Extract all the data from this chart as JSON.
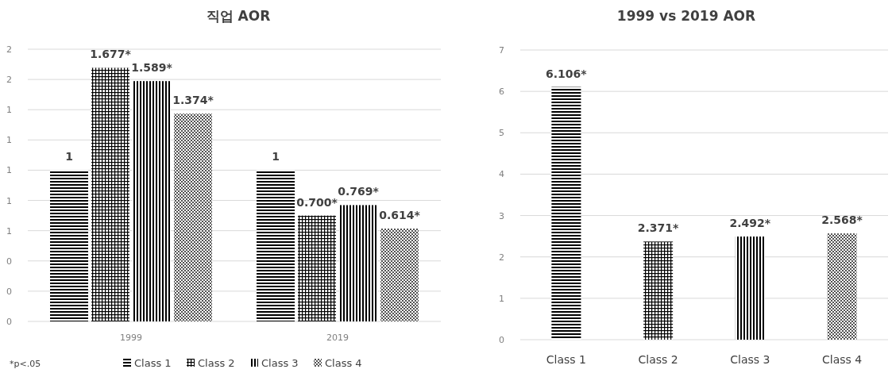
{
  "chart_data": [
    {
      "type": "bar",
      "title": "직업 AOR",
      "categories": [
        "1999",
        "2019"
      ],
      "series": [
        {
          "name": "Class 1",
          "color": "#000000",
          "values": [
            1,
            1
          ],
          "value_labels": [
            "1",
            "1"
          ]
        },
        {
          "name": "Class 2",
          "color": "#000000",
          "values": [
            1.677,
            0.7
          ],
          "value_labels": [
            "1.677*",
            "0.700*"
          ]
        },
        {
          "name": "Class 3",
          "color": "#000000",
          "values": [
            1.589,
            0.769
          ],
          "value_labels": [
            "1.589*",
            "0.769*"
          ]
        },
        {
          "name": "Class 4",
          "color": "#000000",
          "values": [
            1.374,
            0.614
          ],
          "value_labels": [
            "1.374*",
            "0.614*"
          ]
        }
      ],
      "ylim": [
        0,
        1.8
      ],
      "yticks": [
        {
          "value": 0,
          "label": "0"
        },
        {
          "value": 0.2,
          "label": "0"
        },
        {
          "value": 0.4,
          "label": "0"
        },
        {
          "value": 0.6,
          "label": "1"
        },
        {
          "value": 0.8,
          "label": "1"
        },
        {
          "value": 1,
          "label": "1"
        },
        {
          "value": 1.2,
          "label": "1"
        },
        {
          "value": 1.4,
          "label": "1"
        },
        {
          "value": 1.6,
          "label": "2"
        },
        {
          "value": 1.8,
          "label": "2"
        }
      ],
      "grid": "y",
      "legend": "bottom",
      "annotations": [
        "*p<.05"
      ]
    },
    {
      "type": "bar",
      "title": "1999 vs 2019 AOR",
      "categories": [
        "Class 1",
        "Class 2",
        "Class 3",
        "Class 4"
      ],
      "values": [
        6.106,
        2.371,
        2.492,
        2.568
      ],
      "value_labels": [
        "6.106*",
        "2.371*",
        "2.492*",
        "2.568*"
      ],
      "colors": [
        "#000000",
        "#000000",
        "#000000",
        "#000000"
      ],
      "ylim": [
        0,
        7
      ],
      "yticks": [
        0,
        1,
        2,
        3,
        4,
        5,
        6,
        7
      ],
      "grid": "y"
    }
  ]
}
